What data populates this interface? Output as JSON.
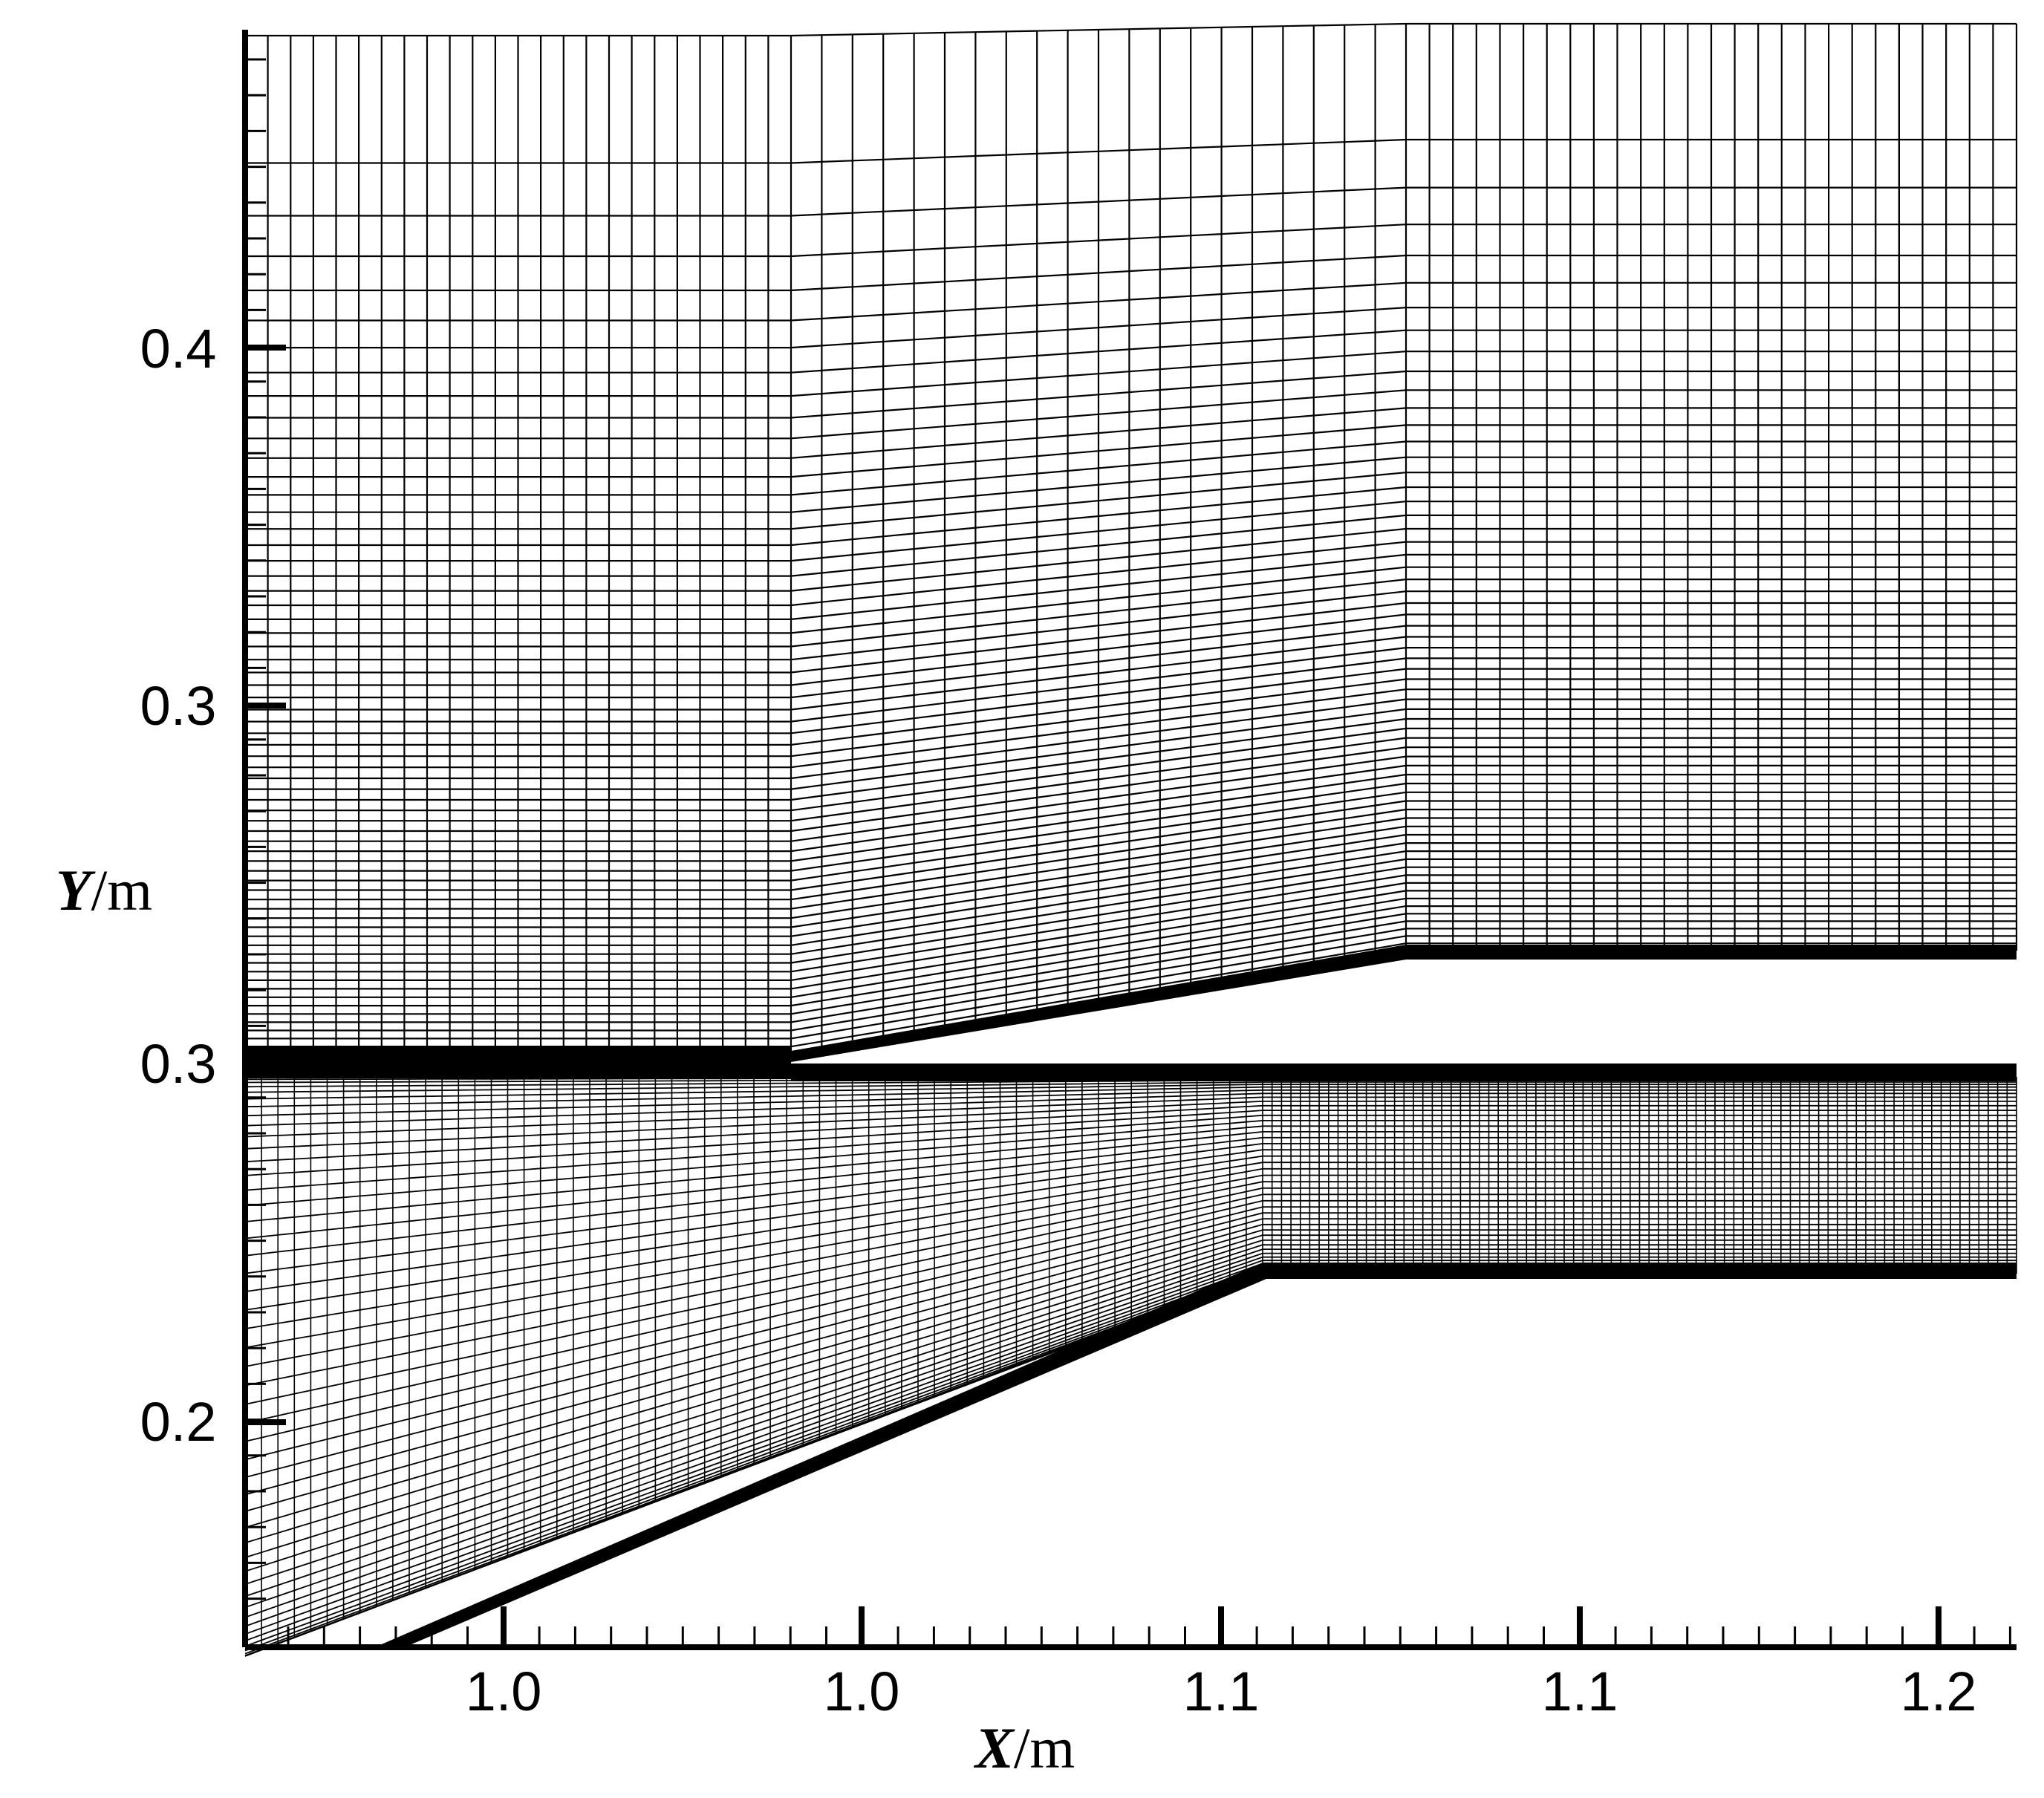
{
  "figure": {
    "type": "structured-mesh",
    "line_color": "#000000",
    "background": "#ffffff"
  },
  "axes": {
    "x_title_var": "X",
    "x_title_unit": "/m",
    "y_title_var": "Y",
    "y_title_unit": "/m",
    "x_tick_labels": [
      "1.0",
      "1.0",
      "1.1",
      "1.1",
      "1.2"
    ],
    "y_tick_labels": [
      "0.4",
      "0.3",
      "0.3",
      "0.2"
    ]
  }
}
